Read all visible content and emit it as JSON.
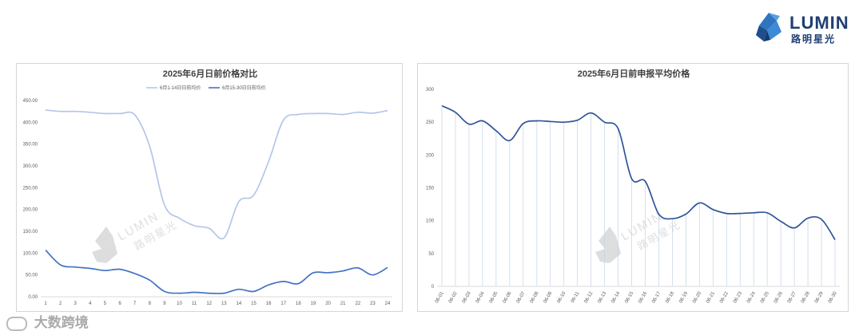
{
  "brand": {
    "name": "LUMIN",
    "subtitle": "路明星光",
    "logo_icon": "crystal-logo-icon"
  },
  "footer": {
    "icon": "watermark-logo-icon",
    "text": "大数跨境"
  },
  "chart_data": [
    {
      "type": "line",
      "title": "2025年6月日前价格对比",
      "categories": [
        "1",
        "2",
        "3",
        "4",
        "5",
        "6",
        "7",
        "8",
        "9",
        "10",
        "11",
        "12",
        "13",
        "14",
        "15",
        "16",
        "17",
        "18",
        "19",
        "20",
        "21",
        "22",
        "23",
        "24"
      ],
      "yticks": [
        "0.00",
        "50.00",
        "100.00",
        "150.00",
        "200.00",
        "250.00",
        "300.00",
        "350.00",
        "400.00",
        "450.00"
      ],
      "ylim": [
        0,
        450
      ],
      "legend": "top",
      "grid": false,
      "series": [
        {
          "name": "6月1-14日日前均价",
          "color": "#b4c7e7",
          "values": [
            428,
            425,
            425,
            423,
            420,
            420,
            417,
            345,
            210,
            180,
            163,
            157,
            135,
            218,
            233,
            310,
            405,
            418,
            420,
            420,
            418,
            423,
            421,
            427
          ]
        },
        {
          "name": "6月15-30日日前均价",
          "color": "#4472c4",
          "values": [
            107,
            73,
            68,
            65,
            60,
            63,
            53,
            38,
            12,
            8,
            10,
            8,
            8,
            17,
            12,
            27,
            35,
            30,
            55,
            55,
            59,
            66,
            50,
            67
          ]
        }
      ],
      "watermark": {
        "text": "LUMIN",
        "sub": "路明星光"
      }
    },
    {
      "type": "line",
      "title": "2025年6月日前申报平均价格",
      "categories": [
        "06-01",
        "06-02",
        "06-03",
        "06-04",
        "06-05",
        "06-06",
        "06-07",
        "06-08",
        "06-09",
        "06-10",
        "06-11",
        "06-12",
        "06-13",
        "06-14",
        "06-15",
        "06-16",
        "06-17",
        "06-18",
        "06-19",
        "06-20",
        "06-21",
        "06-22",
        "06-23",
        "06-24",
        "06-25",
        "06-26",
        "06-27",
        "06-28",
        "06-29",
        "06-30"
      ],
      "yticks": [
        "0",
        "50",
        "100",
        "150",
        "200",
        "250",
        "300"
      ],
      "ylim": [
        0,
        300
      ],
      "grid": false,
      "drop_lines": true,
      "series": [
        {
          "color": "#2f5597",
          "drop_color": "#c9d8ea",
          "values": [
            275,
            265,
            247,
            252,
            237,
            222,
            248,
            252,
            251,
            250,
            253,
            264,
            250,
            240,
            164,
            160,
            110,
            103,
            110,
            127,
            117,
            111,
            111,
            112,
            112,
            99,
            89,
            104,
            102,
            71
          ]
        }
      ],
      "watermark": {
        "text": "LUMIN",
        "sub": "路明星光"
      }
    }
  ]
}
